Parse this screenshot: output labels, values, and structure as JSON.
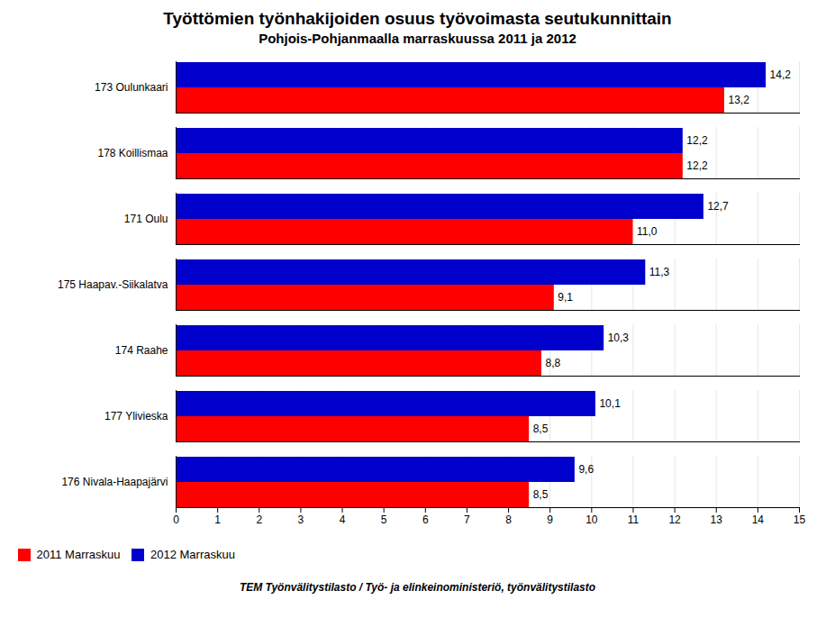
{
  "chart_data": {
    "type": "bar",
    "orientation": "horizontal",
    "title": "Työttömien työnhakijoiden osuus työvoimasta seutukunnittain",
    "subtitle": "Pohjois-Pohjanmaalla marraskuussa 2011 ja 2012",
    "footer": "TEM Työnvälitystilasto / Työ- ja elinkeinoministeriö, työnvälitystilasto",
    "categories": [
      "176 Nivala-Haapajärvi",
      "177 Ylivieska",
      "174 Raahe",
      "175 Haapav.-Siikalatva",
      "171 Oulu",
      "178 Koillismaa",
      "173 Oulunkaari"
    ],
    "series": [
      {
        "name": "2011 Marraskuu",
        "color": "#FF0000",
        "values": [
          8.5,
          8.5,
          8.8,
          9.1,
          11.0,
          12.2,
          13.2
        ],
        "value_labels": [
          "8,5",
          "8,5",
          "8,8",
          "9,1",
          "11,0",
          "12,2",
          "13,2"
        ]
      },
      {
        "name": "2012 Marraskuu",
        "color": "#0000CC",
        "values": [
          9.6,
          10.1,
          10.3,
          11.3,
          12.7,
          12.2,
          14.2
        ],
        "value_labels": [
          "9,6",
          "10,1",
          "10,3",
          "11,3",
          "12,7",
          "12,2",
          "14,2"
        ]
      }
    ],
    "xlim": [
      0,
      15
    ],
    "xticks": [
      0,
      1,
      2,
      3,
      4,
      5,
      6,
      7,
      8,
      9,
      10,
      11,
      12,
      13,
      14,
      15
    ],
    "grid": true,
    "legend": "lower left",
    "data_labels": true
  }
}
